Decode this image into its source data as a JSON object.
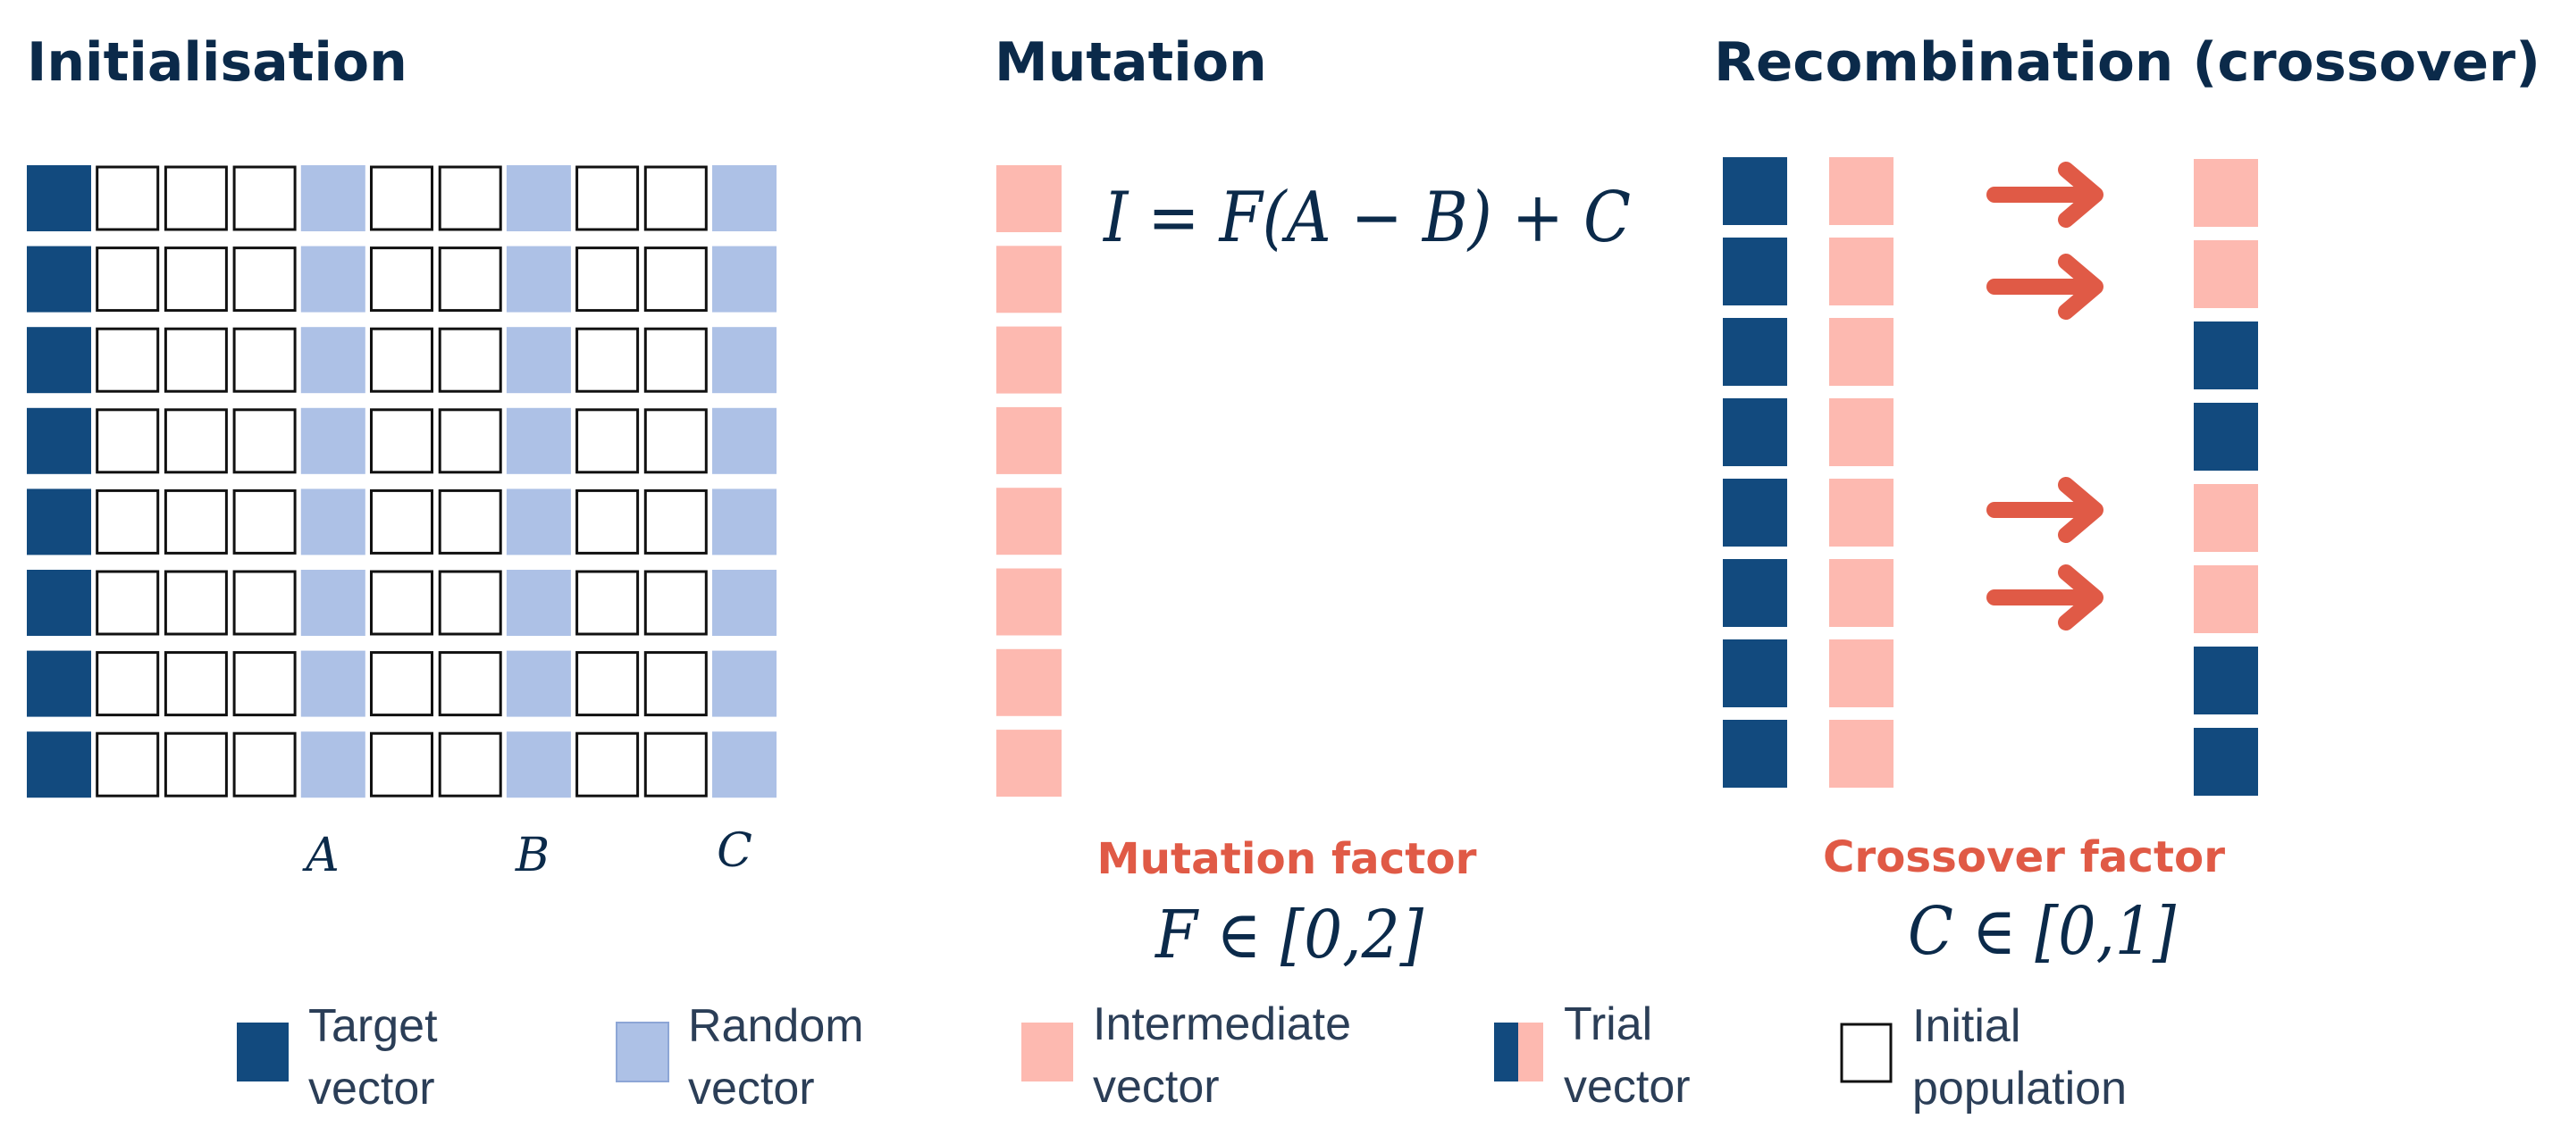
{
  "colors": {
    "target": "#124a7e",
    "random": "#adc1e6",
    "intermediate": "#fdb9b0",
    "initial_fill": "#ffffff",
    "initial_stroke": "#111111",
    "heading": "#0b2a4a",
    "factor": "#e05a46",
    "arrow": "#e05a46"
  },
  "sections": {
    "initialisation": {
      "title": "Initialisation",
      "grid_rows": 8,
      "columns": [
        "target",
        "initial",
        "initial",
        "initial",
        "random",
        "initial",
        "initial",
        "random",
        "initial",
        "initial",
        "random"
      ],
      "column_labels": [
        "A",
        "B",
        "C"
      ]
    },
    "mutation": {
      "title": "Mutation",
      "formula": "I = F(A − B) + C",
      "factor_label": "Mutation factor",
      "factor_range": "F ∈ [0,2]",
      "cells": 8
    },
    "recombination": {
      "title": "Recombination (crossover)",
      "factor_label": "Crossover factor",
      "factor_range": "C ∈ [0,1]",
      "target_cells": 8,
      "intermediate_cells": 8,
      "trial_cells": [
        "intermediate",
        "intermediate",
        "target",
        "target",
        "intermediate",
        "intermediate",
        "target",
        "target"
      ],
      "arrows_at_rows": [
        0,
        1,
        4,
        5
      ]
    }
  },
  "legend": [
    {
      "type": "target",
      "line1": "Target",
      "line2": "vector"
    },
    {
      "type": "random",
      "line1": "Random",
      "line2": "vector"
    },
    {
      "type": "intermediate",
      "line1": "Intermediate",
      "line2": "vector"
    },
    {
      "type": "trial",
      "line1": "Trial",
      "line2": "vector"
    },
    {
      "type": "initial",
      "line1": "Initial",
      "line2": "population"
    }
  ]
}
